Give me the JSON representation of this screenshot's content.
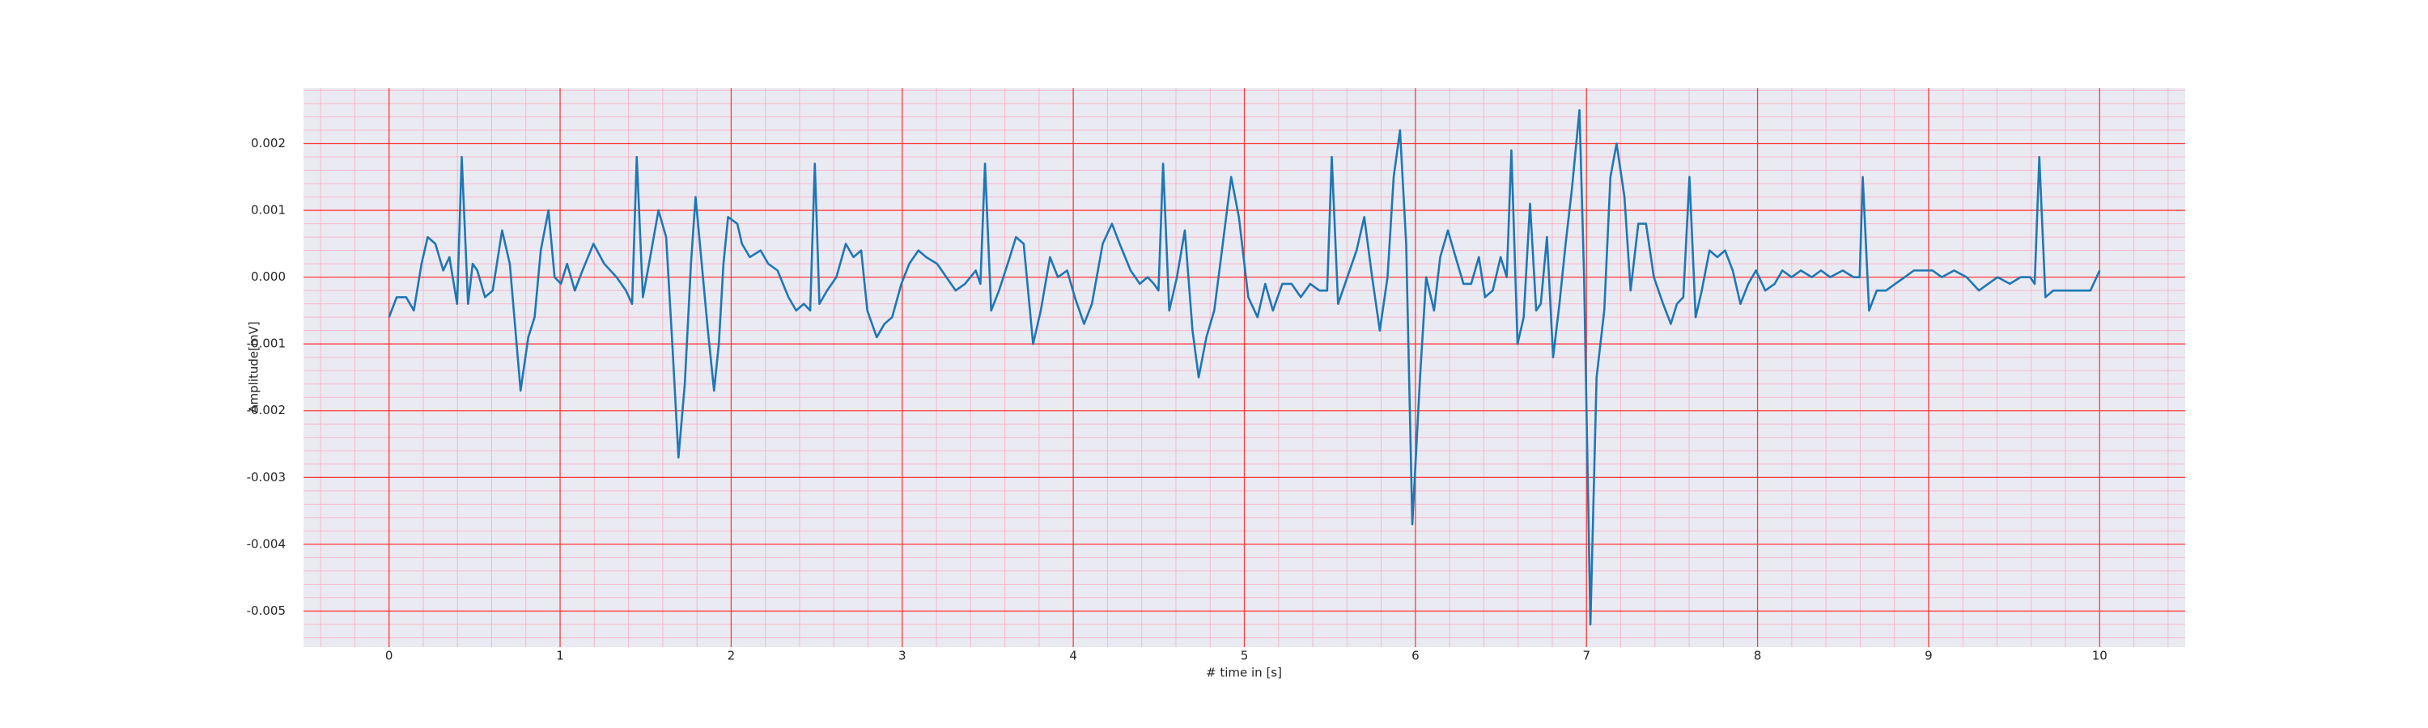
{
  "chart_data": {
    "type": "line",
    "xlabel": "# time in [s]",
    "ylabel": "Amplitude[mV]",
    "xlim": [
      -0.5,
      10.5
    ],
    "xticks": [
      0,
      1,
      2,
      3,
      4,
      5,
      6,
      7,
      8,
      9,
      10
    ],
    "ylim": [
      -0.00554,
      0.00283
    ],
    "yticks": [
      -0.005,
      -0.004,
      -0.003,
      -0.002,
      -0.001,
      {
        "value": 0,
        "label": "0.000"
      },
      0.001,
      0.002
    ],
    "grid": true,
    "grid_color": "#ff3b3b",
    "minor_grid_color": "#f6b8c8",
    "background": "#eaeaf2",
    "series": [
      {
        "color": "#1f77b4",
        "x": [
          0,
          0.045,
          0.1,
          0.145,
          0.19,
          0.226,
          0.271,
          0.317,
          0.353,
          0.398,
          0.425,
          0.462,
          0.489,
          0.516,
          0.561,
          0.606,
          0.661,
          0.706,
          0.769,
          0.814,
          0.851,
          0.887,
          0.932,
          0.968,
          1.005,
          1.041,
          1.086,
          1.131,
          1.195,
          1.258,
          1.33,
          1.385,
          1.421,
          1.448,
          1.484,
          1.52,
          1.575,
          1.62,
          1.656,
          1.692,
          1.729,
          1.765,
          1.792,
          1.828,
          1.864,
          1.9,
          1.928,
          1.955,
          1.982,
          2.036,
          2.063,
          2.109,
          2.172,
          2.217,
          2.271,
          2.335,
          2.38,
          2.425,
          2.462,
          2.489,
          2.516,
          2.561,
          2.615,
          2.67,
          2.715,
          2.76,
          2.796,
          2.851,
          2.896,
          2.941,
          2.995,
          3.041,
          3.095,
          3.14,
          3.204,
          3.258,
          3.312,
          3.367,
          3.43,
          3.457,
          3.484,
          3.52,
          3.566,
          3.629,
          3.665,
          3.71,
          3.765,
          3.81,
          3.864,
          3.91,
          3.964,
          4.009,
          4.063,
          4.109,
          4.172,
          4.226,
          4.271,
          4.335,
          4.389,
          4.434,
          4.471,
          4.498,
          4.525,
          4.561,
          4.606,
          4.652,
          4.697,
          4.733,
          4.778,
          4.824,
          4.869,
          4.923,
          4.968,
          5.023,
          5.077,
          5.122,
          5.167,
          5.222,
          5.276,
          5.33,
          5.385,
          5.439,
          5.484,
          5.511,
          5.548,
          5.602,
          5.656,
          5.701,
          5.747,
          5.792,
          5.837,
          5.873,
          5.91,
          5.946,
          5.982,
          6.027,
          6.063,
          6.109,
          6.145,
          6.19,
          6.235,
          6.281,
          6.326,
          6.371,
          6.407,
          6.452,
          6.498,
          6.534,
          6.561,
          6.597,
          6.633,
          6.67,
          6.706,
          6.733,
          6.769,
          6.805,
          6.842,
          6.878,
          6.914,
          6.959,
          6.986,
          7.023,
          7.059,
          7.104,
          7.14,
          7.176,
          7.222,
          7.258,
          7.303,
          7.348,
          7.394,
          7.448,
          7.493,
          7.529,
          7.566,
          7.602,
          7.638,
          7.674,
          7.719,
          7.765,
          7.81,
          7.855,
          7.9,
          7.946,
          7.991,
          8.045,
          8.1,
          8.145,
          8.199,
          8.253,
          8.317,
          8.371,
          8.425,
          8.498,
          8.561,
          8.597,
          8.615,
          8.652,
          8.697,
          8.751,
          8.805,
          8.86,
          8.914,
          8.968,
          9.023,
          9.077,
          9.149,
          9.222,
          9.294,
          9.348,
          9.403,
          9.475,
          9.538,
          9.593,
          9.62,
          9.647,
          9.683,
          9.729,
          9.783,
          9.855,
          9.91,
          9.946,
          10
        ],
        "values": [
          -0.0006,
          -0.0003,
          -0.0003,
          -0.0005,
          0.0002,
          0.0006,
          0.0005,
          0.0001,
          0.0003,
          -0.0004,
          0.0018,
          -0.0004,
          0.0002,
          0.0001,
          -0.0003,
          -0.0002,
          0.0007,
          0.0002,
          -0.0017,
          -0.0009,
          -0.0006,
          0.0004,
          0.001,
          0,
          -0.0001,
          0.0002,
          -0.0002,
          0.0001,
          0.0005,
          0.0002,
          0,
          -0.0002,
          -0.0004,
          0.0018,
          -0.0003,
          0.0002,
          0.001,
          0.0006,
          -0.001,
          -0.0027,
          -0.0016,
          0.0002,
          0.0012,
          0.0002,
          -0.0008,
          -0.0017,
          -0.001,
          0.0002,
          0.0009,
          0.0008,
          0.0005,
          0.0003,
          0.0004,
          0.0002,
          0.0001,
          -0.0003,
          -0.0005,
          -0.0004,
          -0.0005,
          0.0017,
          -0.0004,
          -0.0002,
          0,
          0.0005,
          0.0003,
          0.0004,
          -0.0005,
          -0.0009,
          -0.0007,
          -0.0006,
          -0.0001,
          0.0002,
          0.0004,
          0.0003,
          0.0002,
          0,
          -0.0002,
          -0.0001,
          0.0001,
          -0.0001,
          0.0017,
          -0.0005,
          -0.0002,
          0.0003,
          0.0006,
          0.0005,
          -0.001,
          -0.0005,
          0.0003,
          0,
          0.0001,
          -0.0003,
          -0.0007,
          -0.0004,
          0.0005,
          0.0008,
          0.0005,
          0.0001,
          -0.0001,
          0,
          -0.0001,
          -0.0002,
          0.0017,
          -0.0005,
          0,
          0.0007,
          -0.0008,
          -0.0015,
          -0.0009,
          -0.0005,
          0.0004,
          0.0015,
          0.0009,
          -0.0003,
          -0.0006,
          -0.0001,
          -0.0005,
          -0.0001,
          -0.0001,
          -0.0003,
          -0.0001,
          -0.0002,
          -0.0002,
          0.0018,
          -0.0004,
          0,
          0.0004,
          0.0009,
          0,
          -0.0008,
          0,
          0.0015,
          0.0022,
          0.0005,
          -0.0037,
          -0.0015,
          0,
          -0.0005,
          0.0003,
          0.0007,
          0.0003,
          -0.0001,
          -0.0001,
          0.0003,
          -0.0003,
          -0.0002,
          0.0003,
          0,
          0.0019,
          -0.001,
          -0.0006,
          0.0011,
          -0.0005,
          -0.0004,
          0.0006,
          -0.0012,
          -0.0004,
          0.0005,
          0.0013,
          0.0025,
          0,
          -0.0052,
          -0.0015,
          -0.0005,
          0.0015,
          0.002,
          0.0012,
          -0.0002,
          0.0008,
          0.0008,
          0,
          -0.0004,
          -0.0007,
          -0.0004,
          -0.0003,
          0.0015,
          -0.0006,
          -0.0002,
          0.0004,
          0.0003,
          0.0004,
          0.0001,
          -0.0004,
          -0.0001,
          0.0001,
          -0.0002,
          -0.0001,
          0.0001,
          0,
          0.0001,
          0,
          0.0001,
          0,
          0.0001,
          0,
          0,
          0.0015,
          -0.0005,
          -0.0002,
          -0.0002,
          -0.0001,
          0,
          0.0001,
          0.0001,
          0.0001,
          0,
          0.0001,
          0,
          -0.0002,
          -0.0001,
          0,
          -0.0001,
          0,
          0,
          -0.0001,
          0.0018,
          -0.0003,
          -0.0002,
          -0.0002,
          -0.0002,
          -0.0002,
          -0.0002,
          0.0001
        ]
      }
    ]
  }
}
